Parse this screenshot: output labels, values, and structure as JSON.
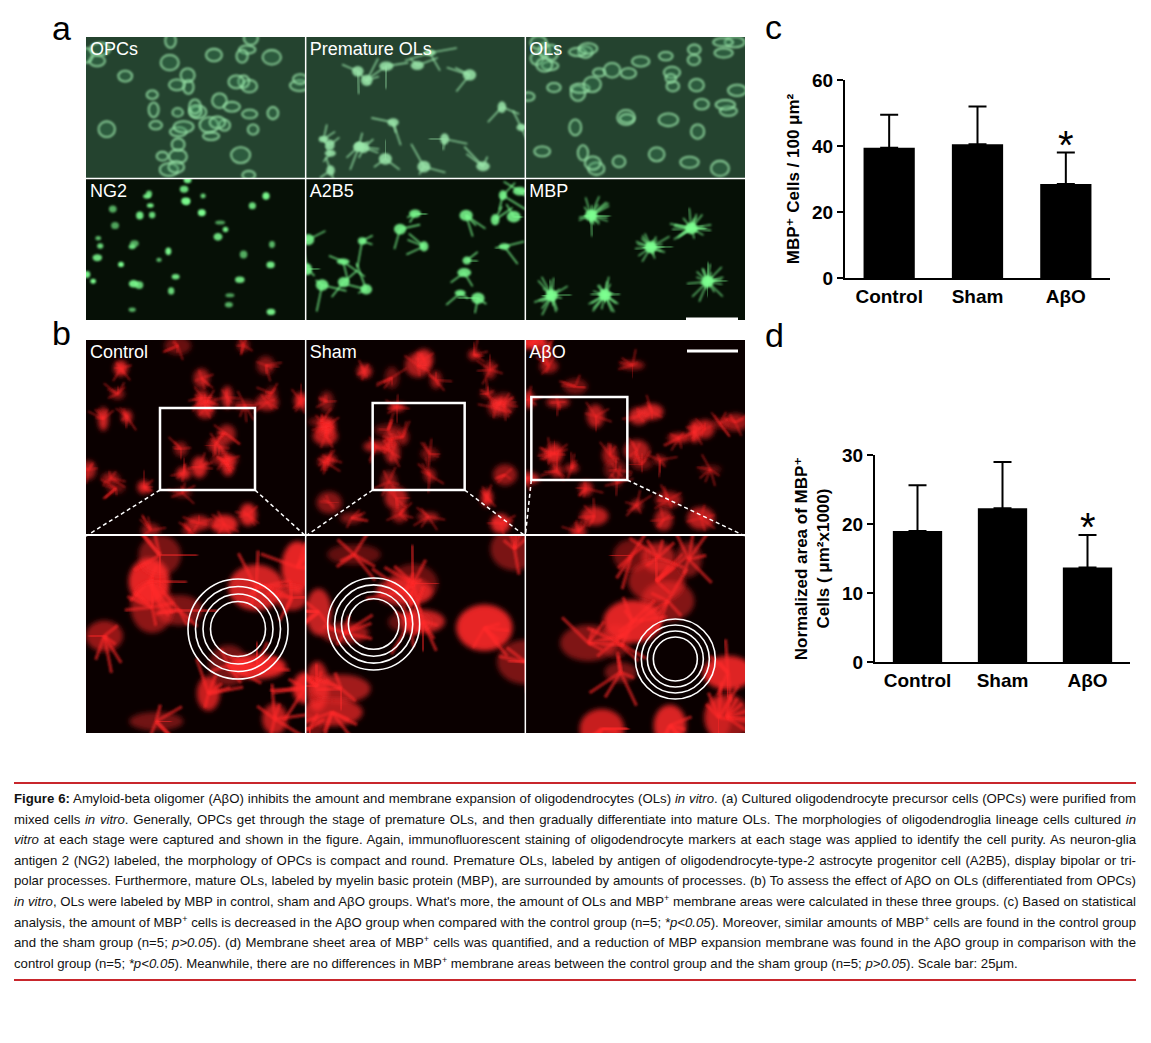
{
  "figure": {
    "panel_a": {
      "letter": "a",
      "images": [
        "OPCs",
        "Premature OLs",
        "OLs",
        "NG2",
        "A2B5",
        "MBP"
      ]
    },
    "panel_b": {
      "letter": "b",
      "images": [
        "Control",
        "Sham",
        "AβO"
      ]
    },
    "caption": {
      "runs": [
        {
          "text": "Figure 6:",
          "style": "bold"
        },
        {
          "text": " Amyloid-beta oligomer (AβO) inhibits the amount and membrane expansion of oligodendrocytes (OLs) "
        },
        {
          "text": "in vitro",
          "style": "italic"
        },
        {
          "text": ". (a) Cultured oligodendrocyte precursor cells (OPCs) were purified from mixed cells "
        },
        {
          "text": "in vitro",
          "style": "italic"
        },
        {
          "text": ". Generally, OPCs get through the stage of premature OLs, and then gradually differentiate into mature OLs. The morphologies of oligodendroglia lineage cells cultured "
        },
        {
          "text": "in vitro",
          "style": "italic"
        },
        {
          "text": " at each stage were captured and shown in the figure. Again, immunofluorescent staining of oligodendrocyte markers at each stage was applied to identify the cell purity. As neuron-glia antigen 2 (NG2) labeled, the morphology of OPCs is compact and round. Premature OLs, labeled by antigen of oligodendrocyte-type-2 astrocyte progenitor cell (A2B5), display bipolar or tri-polar processes. Furthermore, mature OLs, labeled by myelin basic protein (MBP), are surrounded by amounts of processes. (b) To assess the effect of AβO on OLs (differentiated from OPCs) "
        },
        {
          "text": "in vitro",
          "style": "italic"
        },
        {
          "text": ", OLs were labeled by MBP in control, sham and AβO groups. What's more, the amount of OLs and MBP"
        },
        {
          "text": "+",
          "style": "sup"
        },
        {
          "text": " membrane areas were calculated in these three groups. (c) Based on statistical analysis, the amount of MBP"
        },
        {
          "text": "+",
          "style": "sup"
        },
        {
          "text": " cells is decreased in the AβO group when compared with the control group (n=5; "
        },
        {
          "text": "*p<0.05",
          "style": "italic"
        },
        {
          "text": "). Moreover, similar amounts of MBP"
        },
        {
          "text": "+",
          "style": "sup"
        },
        {
          "text": " cells are found in the control group and the sham group (n=5; "
        },
        {
          "text": "p>0.05",
          "style": "italic"
        },
        {
          "text": "). (d) Membrane sheet area of MBP"
        },
        {
          "text": "+",
          "style": "sup"
        },
        {
          "text": " cells was quantified, and a reduction of MBP expansion membrane was found in the AβO group in comparison with the control group (n=5; "
        },
        {
          "text": "*p<0.05",
          "style": "italic"
        },
        {
          "text": "). Meanwhile, there are no differences in MBP"
        },
        {
          "text": "+",
          "style": "sup"
        },
        {
          "text": " membrane areas between the control group and the sham group (n=5; "
        },
        {
          "text": "p>0.05",
          "style": "italic"
        },
        {
          "text": "). Scale bar: 25μm."
        }
      ]
    }
  },
  "chart_data": [
    {
      "panel": "c",
      "type": "bar",
      "categories": [
        "Control",
        "Sham",
        "AβO"
      ],
      "values": [
        39.5,
        40.5,
        28.5
      ],
      "errors": [
        10,
        11.5,
        9.5
      ],
      "color": "#000000",
      "y_label": [
        "MBP⁺ Cells / 100 μm²"
      ],
      "ylim": [
        0,
        60
      ],
      "yticks": [
        0,
        20,
        40,
        60
      ],
      "grid": false,
      "annotations": [
        {
          "category": "AβO",
          "text": "*"
        }
      ]
    },
    {
      "panel": "d",
      "type": "bar",
      "categories": [
        "Control",
        "Sham",
        "AβO"
      ],
      "values": [
        19,
        22.3,
        13.7
      ],
      "errors": [
        6.6,
        6.7,
        4.7
      ],
      "color": "#000000",
      "y_label": [
        "Normalized area of MBP⁺",
        "Cells ( μm²x1000)"
      ],
      "ylim": [
        0,
        30
      ],
      "yticks": [
        0,
        10,
        20,
        30
      ],
      "grid": false,
      "annotations": [
        {
          "category": "AβO",
          "text": "*"
        }
      ]
    }
  ]
}
